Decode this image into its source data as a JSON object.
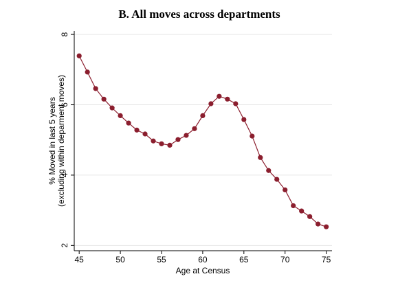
{
  "chart_data": {
    "type": "line",
    "title": "B. All moves across departments",
    "xlabel": "Age at Census",
    "ylabel": [
      "% Moved in last 5 years",
      "(excluding within deparment moves)"
    ],
    "x": [
      45,
      46,
      47,
      48,
      49,
      50,
      51,
      52,
      53,
      54,
      55,
      56,
      57,
      58,
      59,
      60,
      61,
      62,
      63,
      64,
      65,
      66,
      67,
      68,
      69,
      70,
      71,
      72,
      73,
      74,
      75
    ],
    "series": [
      {
        "name": null,
        "color": "#8b1e2e",
        "values": [
          7.39,
          6.93,
          6.46,
          6.16,
          5.91,
          5.69,
          5.48,
          5.28,
          5.17,
          4.97,
          4.89,
          4.85,
          5.01,
          5.13,
          5.32,
          5.69,
          6.03,
          6.24,
          6.16,
          6.03,
          5.58,
          5.11,
          4.5,
          4.13,
          3.88,
          3.58,
          3.13,
          2.98,
          2.82,
          2.61,
          2.53
        ]
      }
    ],
    "xlim": [
      44.4,
      75.7
    ],
    "xticks": [
      45,
      50,
      55,
      60,
      65,
      70,
      75
    ],
    "ylim": [
      1.85,
      8.1
    ],
    "yticks": [
      2,
      4,
      6,
      8
    ],
    "grid": true
  }
}
